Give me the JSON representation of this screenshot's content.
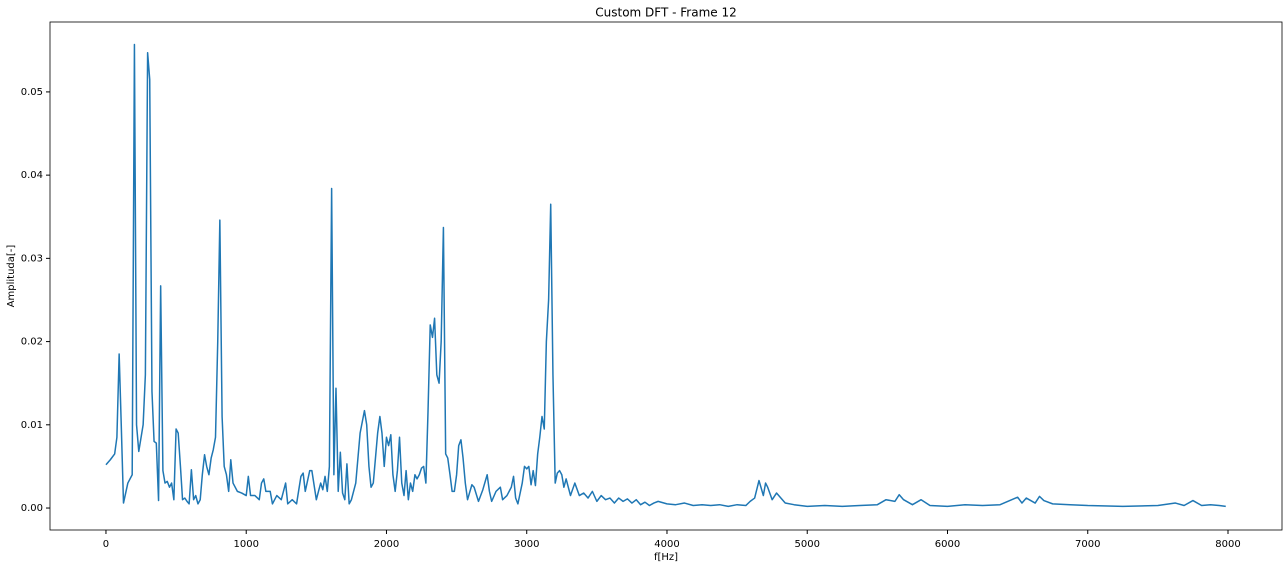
{
  "chart_data": {
    "type": "line",
    "title": "Custom DFT - Frame 12",
    "x_label": "f[Hz]",
    "y_label": "Amplituda[-]",
    "x": [
      0,
      31,
      62,
      78,
      94,
      109,
      125,
      156,
      187,
      203,
      218,
      234,
      265,
      281,
      297,
      312,
      328,
      343,
      359,
      375,
      390,
      406,
      421,
      437,
      453,
      468,
      484,
      500,
      515,
      531,
      546,
      562,
      578,
      593,
      609,
      625,
      640,
      656,
      672,
      687,
      703,
      718,
      734,
      750,
      765,
      781,
      797,
      812,
      828,
      843,
      859,
      875,
      890,
      906,
      937,
      968,
      1000,
      1015,
      1031,
      1062,
      1093,
      1109,
      1125,
      1140,
      1171,
      1187,
      1218,
      1250,
      1281,
      1296,
      1328,
      1359,
      1390,
      1406,
      1421,
      1453,
      1468,
      1500,
      1515,
      1531,
      1546,
      1562,
      1578,
      1593,
      1609,
      1625,
      1640,
      1656,
      1671,
      1687,
      1703,
      1718,
      1734,
      1750,
      1781,
      1812,
      1843,
      1859,
      1875,
      1890,
      1906,
      1937,
      1953,
      1968,
      1984,
      2000,
      2015,
      2031,
      2046,
      2062,
      2078,
      2093,
      2109,
      2125,
      2140,
      2156,
      2171,
      2187,
      2203,
      2218,
      2234,
      2250,
      2265,
      2281,
      2296,
      2312,
      2328,
      2343,
      2359,
      2375,
      2390,
      2406,
      2422,
      2437,
      2453,
      2468,
      2484,
      2500,
      2515,
      2531,
      2546,
      2562,
      2578,
      2609,
      2625,
      2656,
      2687,
      2718,
      2734,
      2750,
      2781,
      2812,
      2828,
      2859,
      2890,
      2906,
      2921,
      2937,
      2968,
      2984,
      3000,
      3015,
      3031,
      3046,
      3062,
      3078,
      3093,
      3109,
      3125,
      3140,
      3156,
      3171,
      3187,
      3203,
      3218,
      3234,
      3250,
      3265,
      3281,
      3312,
      3343,
      3375,
      3406,
      3437,
      3468,
      3500,
      3531,
      3562,
      3593,
      3625,
      3656,
      3687,
      3718,
      3750,
      3781,
      3812,
      3843,
      3875,
      3906,
      3937,
      4000,
      4062,
      4125,
      4187,
      4250,
      4312,
      4375,
      4437,
      4500,
      4562,
      4593,
      4625,
      4656,
      4687,
      4703,
      4718,
      4750,
      4781,
      4812,
      4843,
      4906,
      5000,
      5125,
      5250,
      5375,
      5500,
      5562,
      5625,
      5656,
      5687,
      5750,
      5812,
      5875,
      6000,
      6125,
      6250,
      6375,
      6500,
      6531,
      6562,
      6625,
      6656,
      6687,
      6750,
      6875,
      7000,
      7250,
      7500,
      7625,
      7687,
      7750,
      7812,
      7875,
      7937,
      7984
    ],
    "series": [
      {
        "color": "#1f77b4",
        "values": [
          0.0052,
          0.0058,
          0.0065,
          0.0085,
          0.0185,
          0.01,
          0.0006,
          0.003,
          0.004,
          0.0557,
          0.01,
          0.0068,
          0.01,
          0.016,
          0.0547,
          0.0515,
          0.014,
          0.008,
          0.0078,
          0.0009,
          0.0267,
          0.0045,
          0.003,
          0.0032,
          0.0025,
          0.003,
          0.001,
          0.0095,
          0.009,
          0.005,
          0.001,
          0.0012,
          0.0008,
          0.0005,
          0.0046,
          0.001,
          0.0015,
          0.0005,
          0.001,
          0.004,
          0.0064,
          0.005,
          0.004,
          0.006,
          0.007,
          0.0085,
          0.02,
          0.0346,
          0.011,
          0.005,
          0.004,
          0.002,
          0.0058,
          0.003,
          0.002,
          0.0018,
          0.0015,
          0.0038,
          0.0015,
          0.0015,
          0.001,
          0.003,
          0.0035,
          0.002,
          0.002,
          0.0005,
          0.0015,
          0.001,
          0.003,
          0.0005,
          0.001,
          0.0005,
          0.0038,
          0.0042,
          0.002,
          0.0045,
          0.0045,
          0.001,
          0.002,
          0.003,
          0.0022,
          0.0038,
          0.002,
          0.005,
          0.0384,
          0.004,
          0.0144,
          0.002,
          0.0067,
          0.0018,
          0.001,
          0.0053,
          0.0005,
          0.001,
          0.003,
          0.009,
          0.0117,
          0.01,
          0.005,
          0.0025,
          0.003,
          0.009,
          0.011,
          0.009,
          0.005,
          0.0085,
          0.0075,
          0.0088,
          0.004,
          0.002,
          0.0045,
          0.0085,
          0.003,
          0.0015,
          0.0045,
          0.001,
          0.003,
          0.002,
          0.004,
          0.0035,
          0.004,
          0.0048,
          0.005,
          0.003,
          0.0115,
          0.022,
          0.0205,
          0.0228,
          0.016,
          0.015,
          0.02,
          0.0337,
          0.0065,
          0.006,
          0.004,
          0.002,
          0.002,
          0.004,
          0.0075,
          0.0082,
          0.006,
          0.003,
          0.001,
          0.0028,
          0.0025,
          0.0008,
          0.0022,
          0.004,
          0.002,
          0.0008,
          0.002,
          0.0025,
          0.001,
          0.0015,
          0.0025,
          0.0038,
          0.0012,
          0.0005,
          0.003,
          0.005,
          0.0047,
          0.005,
          0.0028,
          0.0045,
          0.0027,
          0.0065,
          0.0085,
          0.011,
          0.0095,
          0.02,
          0.025,
          0.0365,
          0.016,
          0.003,
          0.0042,
          0.0045,
          0.004,
          0.0025,
          0.0035,
          0.0015,
          0.003,
          0.0015,
          0.0018,
          0.0012,
          0.002,
          0.0008,
          0.0015,
          0.001,
          0.0012,
          0.0006,
          0.0012,
          0.0008,
          0.0011,
          0.0006,
          0.001,
          0.0004,
          0.0007,
          0.0003,
          0.0006,
          0.0008,
          0.0005,
          0.0004,
          0.0006,
          0.0003,
          0.0004,
          0.0003,
          0.0004,
          0.0002,
          0.0004,
          0.0003,
          0.0008,
          0.0012,
          0.0033,
          0.0015,
          0.003,
          0.0025,
          0.001,
          0.0018,
          0.0012,
          0.0006,
          0.0004,
          0.0002,
          0.0003,
          0.0002,
          0.0003,
          0.0004,
          0.001,
          0.0008,
          0.0016,
          0.001,
          0.0004,
          0.001,
          0.0003,
          0.0002,
          0.0004,
          0.0003,
          0.0004,
          0.0013,
          0.0006,
          0.0012,
          0.0006,
          0.0014,
          0.0009,
          0.0005,
          0.0004,
          0.0003,
          0.0002,
          0.0003,
          0.0006,
          0.0003,
          0.0009,
          0.0003,
          0.0004,
          0.0003,
          0.0002
        ]
      }
    ],
    "xlim": [
      -399,
      8385
    ],
    "ylim": [
      -0.00264,
      0.0584
    ],
    "xticks": [
      0,
      1000,
      2000,
      3000,
      4000,
      5000,
      6000,
      7000,
      8000
    ],
    "yticks": [
      {
        "value": 0,
        "label": "0.00"
      },
      0.01,
      0.02,
      0.03,
      0.04,
      0.05
    ]
  }
}
